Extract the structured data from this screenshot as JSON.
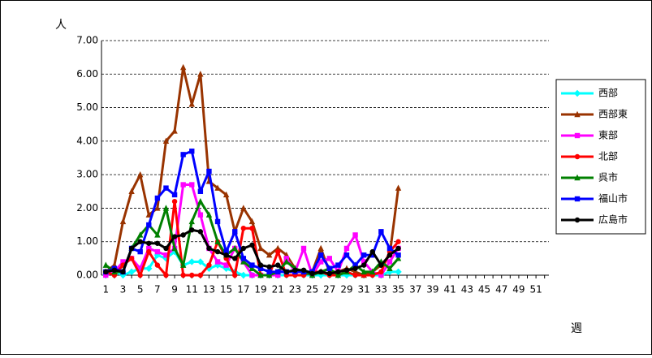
{
  "chart_data": {
    "type": "line",
    "y_label": "人",
    "x_label": "週",
    "categories": [
      1,
      null,
      3,
      null,
      5,
      null,
      7,
      null,
      9,
      null,
      11,
      null,
      13,
      null,
      15,
      null,
      17,
      null,
      19,
      null,
      21,
      null,
      23,
      null,
      25,
      null,
      27,
      null,
      29,
      null,
      31,
      null,
      33,
      null,
      35,
      null,
      37,
      null,
      39,
      null,
      41,
      null,
      43,
      null,
      45,
      null,
      47,
      null,
      49,
      null,
      51,
      null
    ],
    "ylim": [
      0,
      7
    ],
    "yticks": [
      {
        "value": 0,
        "label": "0.00"
      },
      {
        "value": 1,
        "label": "1.00"
      },
      {
        "value": 2,
        "label": "2.00"
      },
      {
        "value": 3,
        "label": "3.00"
      },
      {
        "value": 4,
        "label": "4.00"
      },
      {
        "value": 5,
        "label": "5.00"
      },
      {
        "value": 6,
        "label": "6.00"
      },
      {
        "value": 7,
        "label": "7.00"
      }
    ],
    "grid": true,
    "legend": "right",
    "series": [
      {
        "name": "西部",
        "color": "#00ffff",
        "marker": "diamond",
        "values": [
          0,
          0.1,
          0,
          0.1,
          0.2,
          0.2,
          0.6,
          0.5,
          0.7,
          0.3,
          0.4,
          0.4,
          0.2,
          0.3,
          0.2,
          0.1,
          0,
          0,
          0,
          0,
          0,
          0,
          0,
          0,
          0,
          0,
          0,
          0,
          0,
          0,
          0,
          0,
          0,
          0.1,
          0.1,
          null,
          null,
          null,
          null,
          null,
          null,
          null,
          null,
          null,
          null,
          null,
          null,
          null,
          null,
          null,
          null,
          null
        ]
      },
      {
        "name": "西部東",
        "color": "#993300",
        "marker": "triangle",
        "values": [
          0.1,
          0.3,
          1.6,
          2.5,
          3.0,
          1.8,
          2.0,
          4.0,
          4.3,
          6.2,
          5.1,
          6.0,
          2.8,
          2.6,
          2.4,
          1.3,
          2.0,
          1.6,
          0.8,
          0.6,
          0.8,
          0.6,
          0.2,
          0.1,
          0.1,
          0.8,
          0.1,
          0.1,
          0.2,
          0.1,
          0,
          0.1,
          0.3,
          0.6,
          2.6,
          null,
          null,
          null,
          null,
          null,
          null,
          null,
          null,
          null,
          null,
          null,
          null,
          null,
          null,
          null,
          null,
          null
        ]
      },
      {
        "name": "東部",
        "color": "#ff00ff",
        "marker": "square",
        "values": [
          0,
          0.1,
          0.4,
          0.5,
          0.2,
          0.8,
          0.7,
          0.6,
          0.8,
          2.7,
          2.7,
          1.8,
          0.8,
          0.4,
          0.3,
          0.8,
          0.4,
          0,
          0,
          0,
          0,
          0.5,
          0.1,
          0.8,
          0,
          0.4,
          0.5,
          0.1,
          0.8,
          1.2,
          0.4,
          0.1,
          0,
          0.4,
          0.8,
          null,
          null,
          null,
          null,
          null,
          null,
          null,
          null,
          null,
          null,
          null,
          null,
          null,
          null,
          null,
          null,
          null
        ]
      },
      {
        "name": "北部",
        "color": "#ff0000",
        "marker": "circle",
        "values": [
          0.1,
          0,
          0.3,
          0.5,
          0,
          0.7,
          0.3,
          0,
          2.2,
          0,
          0,
          0,
          0.3,
          1.0,
          0.5,
          0,
          1.4,
          1.4,
          0,
          0,
          0.7,
          0,
          0,
          0,
          0.1,
          0.1,
          0,
          0,
          0.1,
          0,
          0,
          0,
          0.1,
          0.7,
          1.0,
          null,
          null,
          null,
          null,
          null,
          null,
          null,
          null,
          null,
          null,
          null,
          null,
          null,
          null,
          null,
          null,
          null
        ]
      },
      {
        "name": "呉市",
        "color": "#008000",
        "marker": "triangle",
        "values": [
          0.3,
          0.1,
          0.1,
          0.8,
          1.2,
          1.5,
          1.2,
          2.0,
          0.8,
          0.3,
          1.6,
          2.2,
          1.8,
          1.0,
          0.6,
          0.8,
          0.4,
          0.2,
          0,
          0,
          0.1,
          0.4,
          0.2,
          0.1,
          0,
          0.1,
          0.2,
          0,
          0.1,
          0.3,
          0.1,
          0.1,
          0.4,
          0.2,
          0.5,
          null,
          null,
          null,
          null,
          null,
          null,
          null,
          null,
          null,
          null,
          null,
          null,
          null,
          null,
          null,
          null,
          null
        ]
      },
      {
        "name": "福山市",
        "color": "#0000ff",
        "marker": "square",
        "values": [
          0.1,
          0.2,
          0.1,
          0.8,
          0.7,
          1.5,
          2.3,
          2.6,
          2.4,
          3.6,
          3.7,
          2.5,
          3.1,
          1.6,
          0.7,
          1.3,
          0.5,
          0.3,
          0.2,
          0.1,
          0.1,
          0.1,
          0.1,
          0.1,
          0.1,
          0.6,
          0.2,
          0.3,
          0.6,
          0.3,
          0.6,
          0.6,
          1.3,
          0.8,
          0.6,
          null,
          null,
          null,
          null,
          null,
          null,
          null,
          null,
          null,
          null,
          null,
          null,
          null,
          null,
          null,
          null,
          null
        ]
      },
      {
        "name": "広島市",
        "color": "#000000",
        "marker": "circle",
        "values": [
          0.1,
          0.15,
          0.1,
          0.8,
          1.0,
          0.95,
          0.95,
          0.8,
          1.15,
          1.2,
          1.35,
          1.3,
          0.8,
          0.7,
          0.6,
          0.5,
          0.8,
          0.9,
          0.3,
          0.25,
          0.3,
          0.1,
          0.15,
          0.15,
          0.05,
          0.1,
          0.05,
          0.1,
          0.15,
          0.2,
          0.3,
          0.7,
          0.3,
          0.6,
          0.8,
          null,
          null,
          null,
          null,
          null,
          null,
          null,
          null,
          null,
          null,
          null,
          null,
          null,
          null,
          null,
          null,
          null
        ]
      }
    ]
  }
}
